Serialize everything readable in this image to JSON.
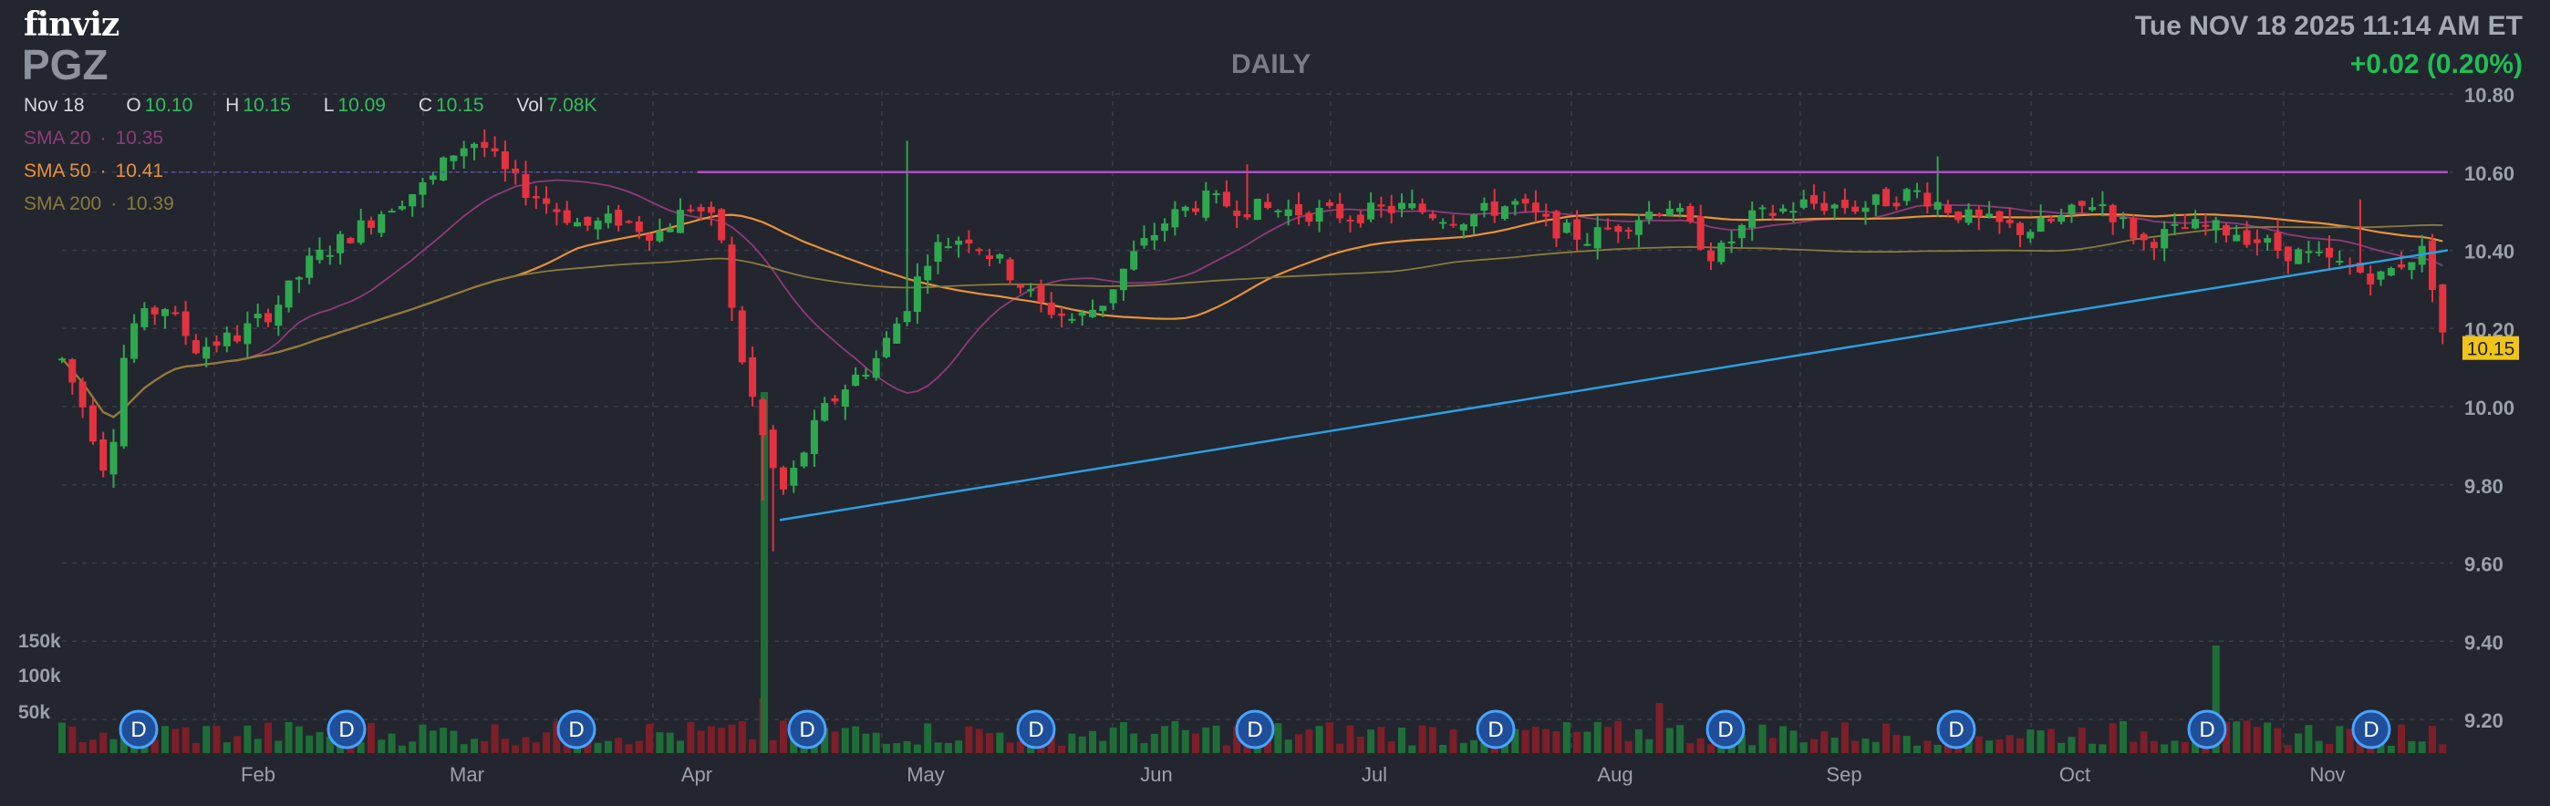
{
  "header": {
    "logo": "finviz",
    "ticker": "PGZ",
    "timeframe": "DAILY",
    "datetime": "Tue NOV 18 2025 11:14 AM ET",
    "change": "+0.02 (0.20%)"
  },
  "ohlc": {
    "date": "Nov 18",
    "o_label": "O",
    "o": "10.10",
    "h_label": "H",
    "h": "10.15",
    "l_label": "L",
    "l": "10.09",
    "c_label": "C",
    "c": "10.15",
    "vol_label": "Vol",
    "vol": "7.08K"
  },
  "sma": [
    {
      "label": "SMA 20",
      "value": "10.35",
      "color": "#8e3b7a"
    },
    {
      "label": "SMA 50",
      "value": "10.41",
      "color": "#e8913a"
    },
    {
      "label": "SMA 200",
      "value": "10.39",
      "color": "#8a7a3c"
    }
  ],
  "colors": {
    "up": "#2ea84f",
    "down": "#e5323f",
    "vol_up": "#1f6e37",
    "vol_down": "#7d1f28",
    "grid": "#3a3e48",
    "axis_text": "#9aa0aa",
    "resistance": "#b04ec6",
    "trendline": "#2c9fe0",
    "last_price_bg": "#f0c419"
  },
  "chart_data": {
    "type": "candlestick",
    "y_ticks": [
      "10.80",
      "10.60",
      "10.40",
      "10.20",
      "10.00",
      "9.80",
      "9.60",
      "9.40",
      "9.20"
    ],
    "ylim": [
      9.13,
      10.84
    ],
    "x_labels": [
      "Feb",
      "Mar",
      "Apr",
      "May",
      "Jun",
      "Jul",
      "Aug",
      "Sep",
      "Oct",
      "Nov"
    ],
    "volume_ticks": [
      "150k",
      "100k",
      "50k"
    ],
    "last_price": "10.15",
    "dividend_marker": "D",
    "dividend_count": 11,
    "resistance_level": 10.6,
    "trendline": {
      "start": [
        "Apr 10",
        9.71
      ],
      "end": [
        "Nov 18",
        10.4
      ]
    },
    "sma_lines": [
      "SMA 20",
      "SMA 50",
      "SMA 200"
    ]
  }
}
